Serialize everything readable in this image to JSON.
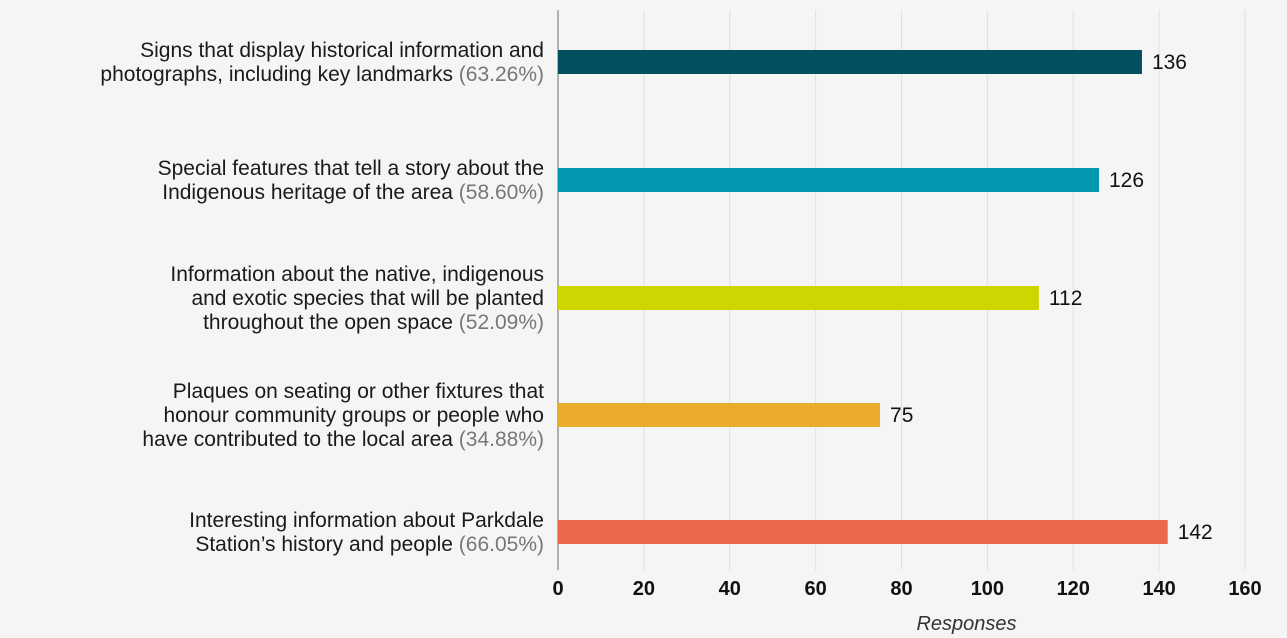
{
  "chart_data": {
    "type": "bar",
    "orientation": "horizontal",
    "categories": [
      {
        "lines": [
          "Signs that display historical information and",
          "photographs, including key landmarks"
        ],
        "percent": "(63.26%)"
      },
      {
        "lines": [
          "Special features that tell a story about the",
          "Indigenous heritage of the area"
        ],
        "percent": "(58.60%)"
      },
      {
        "lines": [
          "Information about the native, indigenous",
          "and exotic species that will be planted",
          "throughout the open space"
        ],
        "percent": "(52.09%)"
      },
      {
        "lines": [
          "Plaques on seating or other fixtures that",
          "honour community groups or people who",
          "have contributed to the local area"
        ],
        "percent": "(34.88%)"
      },
      {
        "lines": [
          "Interesting information about Parkdale",
          "Station’s history and people"
        ],
        "percent": "(66.05%)"
      }
    ],
    "values": [
      136,
      126,
      112,
      75,
      142
    ],
    "colors": [
      "#02505f",
      "#0499b2",
      "#cdd600",
      "#ebab2c",
      "#ec674b"
    ],
    "xlabel": "Responses",
    "xlim": [
      0,
      160
    ],
    "xticks": [
      "0",
      "20",
      "40",
      "60",
      "80",
      "100",
      "120",
      "140",
      "160"
    ],
    "grid": true,
    "legend": "none"
  }
}
